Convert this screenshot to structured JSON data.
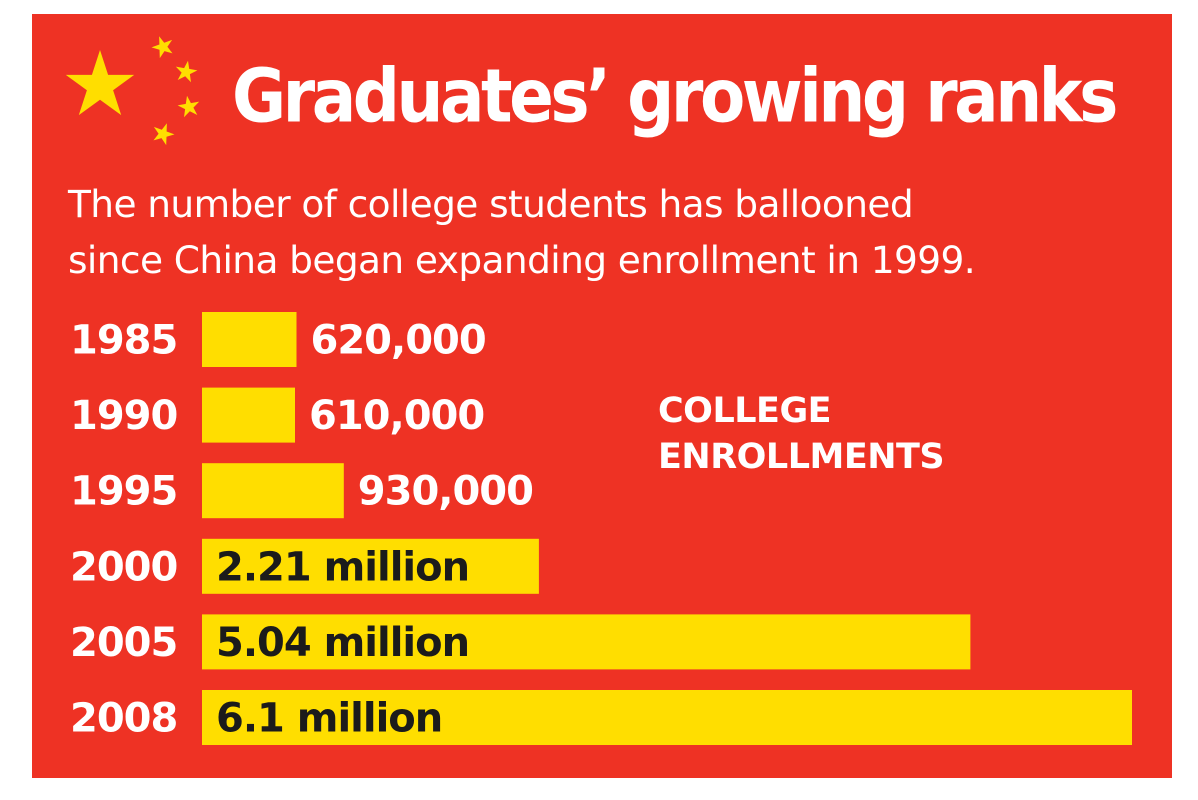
{
  "colors": {
    "background": "#ee3224",
    "bar": "#ffde00",
    "star": "#ffde00",
    "text_light": "#ffffff",
    "text_dark": "#1b1b1b"
  },
  "chart_data": {
    "type": "bar",
    "orientation": "horizontal",
    "title": "Graduates’ growing ranks",
    "subtitle": [
      "The number of college students has ballooned",
      "since China began expanding enrollment in 1999."
    ],
    "legend": [
      "COLLEGE",
      "ENROLLMENTS"
    ],
    "categories": [
      "1985",
      "1990",
      "1995",
      "2000",
      "2005",
      "2008"
    ],
    "values": [
      620000,
      610000,
      930000,
      2210000,
      5040000,
      6100000
    ],
    "value_labels": [
      "620,000",
      "610,000",
      "930,000",
      "2.21 million",
      "5.04 million",
      "6.1 million"
    ],
    "label_position": [
      "outside",
      "outside",
      "outside",
      "inside",
      "inside",
      "inside"
    ],
    "xlim": [
      0,
      6100000
    ],
    "grid": false
  }
}
